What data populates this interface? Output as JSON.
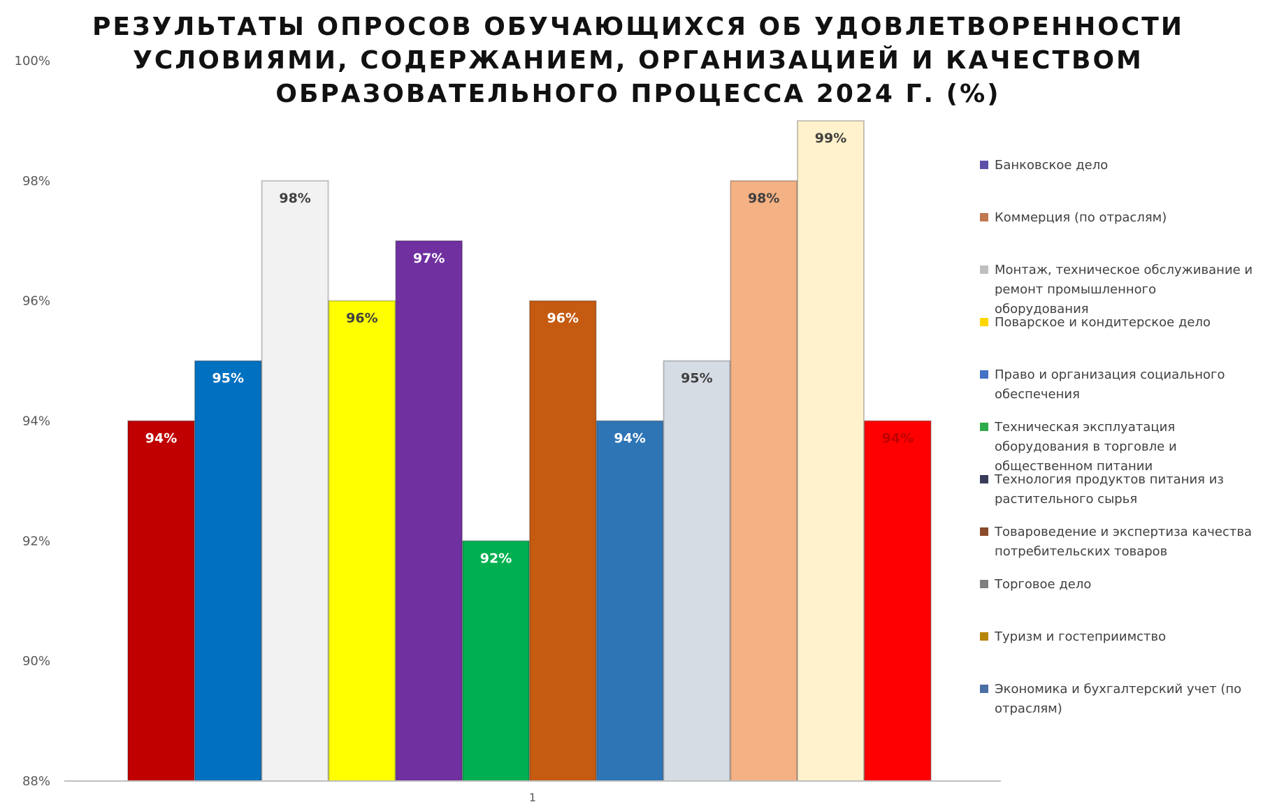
{
  "chart_data": {
    "type": "bar",
    "title_lines": [
      "РЕЗУЛЬТАТЫ ОПРОСОВ ОБУЧАЮЩИХСЯ ОБ УДОВЛЕТВОРЕННОСТИ",
      "УСЛОВИЯМИ, СОДЕРЖАНИЕМ, ОРГАНИЗАЦИЕЙ И КАЧЕСТВОМ",
      "ОБРАЗОВАТЕЛЬНОГО ПРОЦЕССА 2024 Г. (%)"
    ],
    "categories": [
      "1"
    ],
    "ylim": [
      88,
      100
    ],
    "yticks": [
      "88%",
      "90%",
      "92%",
      "94%",
      "96%",
      "98%",
      "100%"
    ],
    "legend_position": "right",
    "grid": false,
    "series": [
      {
        "name": "Банковское дело",
        "value": 94,
        "label": "94%",
        "color": "#C00000",
        "label_color": "#FFFFFF",
        "legend_color": "#5B4FA8"
      },
      {
        "name": "Коммерция (по отраслям)",
        "value": 95,
        "label": "95%",
        "color": "#0070C0",
        "label_color": "#FFFFFF",
        "legend_color": "#C07850"
      },
      {
        "name": "Монтаж, техническое обслуживание и ремонт промышленного оборудования",
        "value": 98,
        "label": "98%",
        "color": "#F2F2F2",
        "label_color": "#404040",
        "legend_color": "#BFBFBF"
      },
      {
        "name": "Поварское и кондитерское дело",
        "value": 96,
        "label": "96%",
        "color": "#FFFF00",
        "label_color": "#404040",
        "legend_color": "#FFD700"
      },
      {
        "name": "Право и организация социального обеспечения",
        "value": 97,
        "label": "97%",
        "color": "#7030A0",
        "label_color": "#FFFFFF",
        "legend_color": "#4472C4"
      },
      {
        "name": "Техническая эксплуатация оборудования в торговле и общественном питании",
        "value": 92,
        "label": "92%",
        "color": "#00B050",
        "label_color": "#FFFFFF",
        "legend_color": "#2EAA4A"
      },
      {
        "name": "Технология продуктов питания из растительного сырья",
        "value": 96,
        "label": "96%",
        "color": "#C55A11",
        "label_color": "#FFFFFF",
        "legend_color": "#3A3A5A"
      },
      {
        "name": "Товароведение и экспертиза качества потребительских товаров",
        "value": 94,
        "label": "94%",
        "color": "#2E75B6",
        "label_color": "#FFFFFF",
        "legend_color": "#8B4A2A"
      },
      {
        "name": "Торговое дело",
        "value": 95,
        "label": "95%",
        "color": "#D6DCE4",
        "label_color": "#404040",
        "legend_color": "#7F7F7F"
      },
      {
        "name": "Туризм и гостеприимство",
        "value": 98,
        "label": "98%",
        "color": "#F4B183",
        "label_color": "#404040",
        "legend_color": "#B8860B"
      },
      {
        "name": "Экономика и бухгалтерский учет (по отраслям)",
        "value": 99,
        "label": "99%",
        "color": "#FFF2CC",
        "label_color": "#404040",
        "legend_color": "#4A6FA5"
      },
      {
        "name": "",
        "value": 94,
        "label": "94%",
        "color": "#FF0000",
        "label_color": "#C00000",
        "legend_color": ""
      }
    ]
  }
}
